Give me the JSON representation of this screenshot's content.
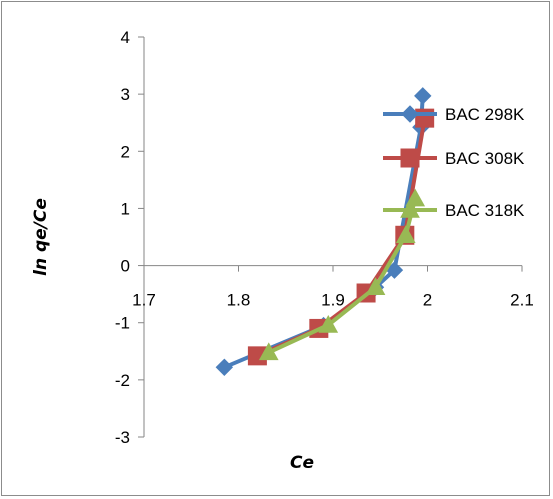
{
  "chart_data": {
    "type": "line",
    "title": "",
    "xlabel": "Ce",
    "ylabel": "ln qe/Ce",
    "xlim": [
      1.7,
      2.1
    ],
    "ylim": [
      -3,
      4
    ],
    "x_ticks": [
      "1.7",
      "1.8",
      "1.9",
      "2",
      "2.1"
    ],
    "y_ticks": [
      "4",
      "3",
      "2",
      "1",
      "0",
      "-1",
      "-2",
      "-3"
    ],
    "grid": false,
    "legend_position": "right",
    "series": [
      {
        "name": "BAC 298K",
        "color": "#4a7ebb",
        "marker": "diamond",
        "points": [
          [
            1.785,
            -1.78
          ],
          [
            1.89,
            -1.05
          ],
          [
            1.945,
            -0.38
          ],
          [
            1.965,
            -0.08
          ],
          [
            1.993,
            2.42
          ],
          [
            1.995,
            2.97
          ]
        ]
      },
      {
        "name": "BAC 308K",
        "color": "#be4b48",
        "marker": "square",
        "points": [
          [
            1.82,
            -1.58
          ],
          [
            1.885,
            -1.1
          ],
          [
            1.935,
            -0.48
          ],
          [
            1.976,
            0.53
          ],
          [
            1.997,
            2.58
          ]
        ]
      },
      {
        "name": "BAC 318K",
        "color": "#98b954",
        "marker": "triangle",
        "points": [
          [
            1.832,
            -1.52
          ],
          [
            1.895,
            -1.04
          ],
          [
            1.945,
            -0.38
          ],
          [
            1.977,
            0.53
          ],
          [
            1.987,
            1.17
          ]
        ]
      }
    ]
  }
}
